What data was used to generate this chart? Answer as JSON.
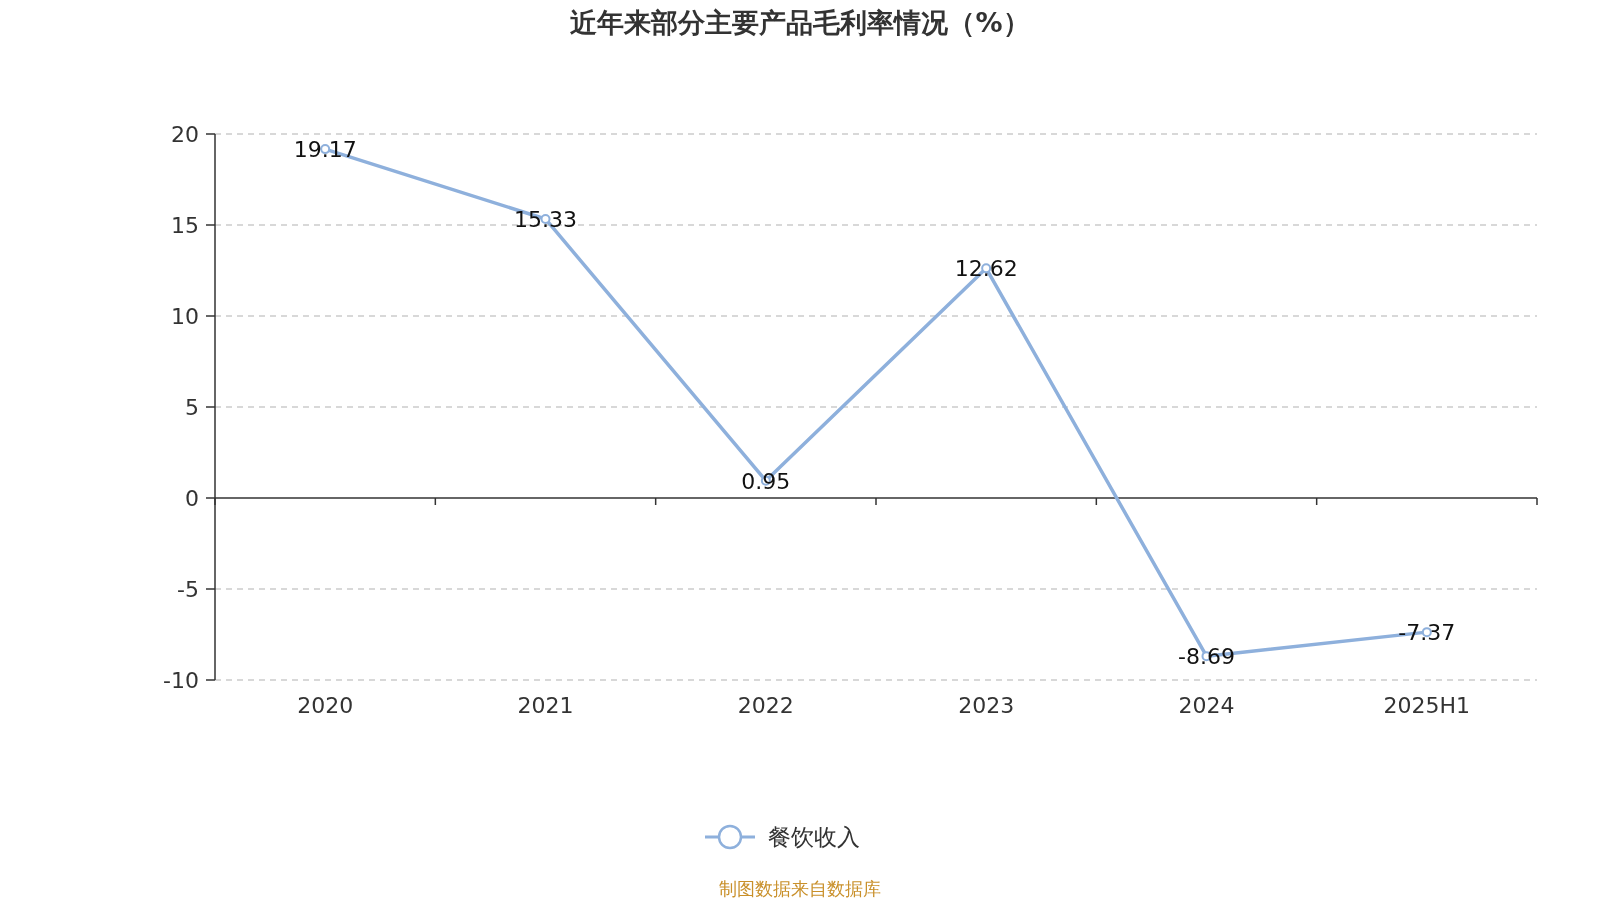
{
  "chart_data": {
    "type": "line",
    "title": "近年来部分主要产品毛利率情况（%）",
    "categories": [
      "2020",
      "2021",
      "2022",
      "2023",
      "2024",
      "2025H1"
    ],
    "series": [
      {
        "name": "餐饮收入",
        "color": "#8eb0dc",
        "values": [
          19.17,
          15.33,
          0.95,
          12.62,
          -8.69,
          -7.37
        ]
      }
    ],
    "ylim": [
      -10,
      20
    ],
    "yticks": [
      -10,
      -5,
      0,
      5,
      10,
      15,
      20
    ],
    "grid": "y",
    "legend": "bottom",
    "marker": "circle",
    "data_labels": true,
    "annotations": [
      "制图数据来自数据库"
    ]
  }
}
